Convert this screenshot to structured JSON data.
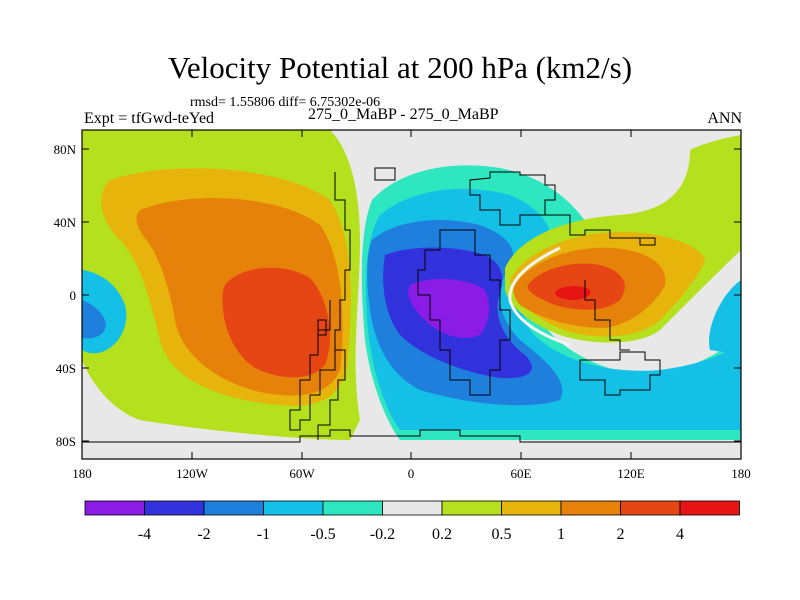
{
  "title": "Velocity Potential at 200 hPa (km2/s)",
  "stats": "rmsd= 1.55806  diff= 6.75302e-06",
  "expt": "Expt = tfGwd-teYed",
  "subtitle": "275_0_MaBP - 275_0_MaBP",
  "season": "ANN",
  "x_ticks": [
    "180",
    "120W",
    "60W",
    "0",
    "60E",
    "120E",
    "180"
  ],
  "y_ticks": [
    "80N",
    "40N",
    "0",
    "40S",
    "80S"
  ],
  "colorbar": {
    "colors": [
      "#8a1ce6",
      "#3232dc",
      "#1e80dc",
      "#14c0e6",
      "#2ee6c0",
      "#e8e8e8",
      "#b4e01e",
      "#e6b40a",
      "#e6820a",
      "#e64614",
      "#e61414"
    ],
    "labels": [
      "-4",
      "-2",
      "-1",
      "-0.5",
      "-0.2",
      "0.2",
      "0.5",
      "1",
      "2",
      "4"
    ]
  }
}
